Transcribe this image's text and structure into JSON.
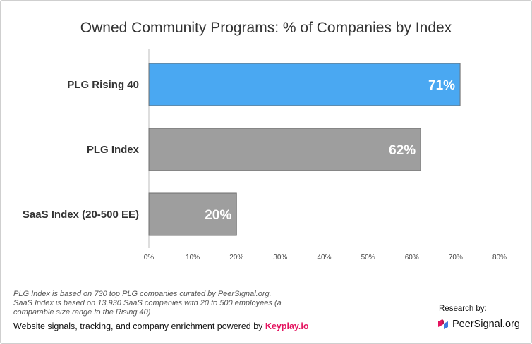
{
  "chart_data": {
    "type": "bar",
    "orientation": "horizontal",
    "title": "Owned Community Programs: % of Companies by Index",
    "categories": [
      "PLG Rising 40",
      "PLG Index",
      "SaaS Index (20-500 EE)"
    ],
    "values": [
      71,
      62,
      20
    ],
    "data_labels": [
      "71%",
      "62%",
      "20%"
    ],
    "bar_colors": [
      "#4aa8f2",
      "#9e9e9e",
      "#9e9e9e"
    ],
    "xlim": [
      0,
      80
    ],
    "xticks": [
      0,
      10,
      20,
      30,
      40,
      50,
      60,
      70,
      80
    ],
    "xtick_labels": [
      "0%",
      "10%",
      "20%",
      "30%",
      "40%",
      "50%",
      "60%",
      "70%",
      "80%"
    ],
    "xlabel": "",
    "ylabel": "",
    "grid": false,
    "legend": "none"
  },
  "notes": [
    "PLG Index is based on 730 top PLG companies curated by PeerSignal.org.",
    "SaaS Index is based on 13,930 SaaS companies with 20 to 500 employees (a",
    "comparable size range to the Rising 40)"
  ],
  "footer": {
    "powered_text": "Website signals, tracking, and company enrichment powered by",
    "powered_brand": "Keyplay.io",
    "brand_color": "#e4135f",
    "research_label": "Research by:",
    "logo_text": "PeerSignal.org",
    "logo_icon": "peersignal-logo-icon"
  }
}
